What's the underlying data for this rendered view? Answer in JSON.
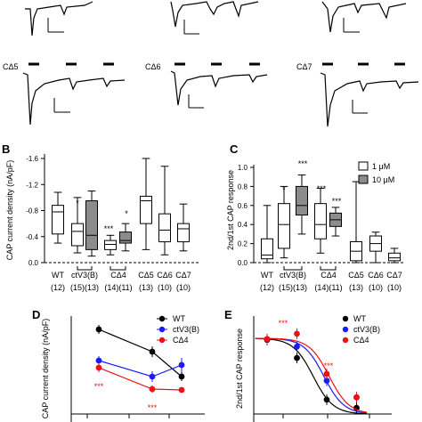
{
  "traces": {
    "labels": [
      "CΔ5",
      "CΔ6",
      "CΔ7"
    ]
  },
  "panelB": {
    "letter": "B",
    "ylabel": "CAP current density (nA/pF)",
    "yticks": [
      "-1.6",
      "-1.2",
      "-0.8",
      "-0.4",
      "0.0"
    ],
    "sig": [
      "*",
      "***",
      "*"
    ],
    "groups": [
      {
        "name": "WT",
        "n": "(12)"
      },
      {
        "name": "ctV3(B)",
        "n": "(15)(13)"
      },
      {
        "name": "CΔ4",
        "n": "(14)(11)"
      },
      {
        "name": "CΔ5",
        "n": "(13)"
      },
      {
        "name": "CΔ6",
        "n": "(10)"
      },
      {
        "name": "CΔ7",
        "n": "(10)"
      }
    ]
  },
  "panelC": {
    "letter": "C",
    "ylabel": "2nd/1st CAP response",
    "yticks": [
      "0.0",
      "0.2",
      "0.4",
      "0.6",
      "0.8",
      "1.0"
    ],
    "legend": [
      "1 μM",
      "10 μM"
    ],
    "sig": [
      "*",
      "***",
      "***",
      "***"
    ],
    "groups": [
      {
        "name": "WT",
        "n": "(12)"
      },
      {
        "name": "ctV3(B)",
        "n": "(15)(13)"
      },
      {
        "name": "CΔ4",
        "n": "(14)(11)"
      },
      {
        "name": "CΔ5",
        "n": "(13)"
      },
      {
        "name": "CΔ6",
        "n": "(10)"
      },
      {
        "name": "CΔ7",
        "n": "(10)"
      }
    ]
  },
  "panelD": {
    "letter": "D",
    "ylabel": "CAP current density (nA/pF)",
    "legend": [
      "WT",
      "ctV3(B)",
      "CΔ4"
    ],
    "sig_blue": "**",
    "sig_red": [
      "***",
      "***"
    ]
  },
  "panelE": {
    "letter": "E",
    "ylabel": "2nd/1st CAP response",
    "legend": [
      "WT",
      "ctV3(B)",
      "CΔ4"
    ],
    "sig_red": [
      "***",
      "***"
    ]
  },
  "colors": {
    "wt": "#000000",
    "ctv3": "#1a1aff",
    "cd4": "#ee1111",
    "grey": "#8c8c8c"
  },
  "chart_data": [
    {
      "type": "box",
      "panel": "B",
      "ylabel": "CAP current density (nA/pF)",
      "ylim": [
        -1.6,
        0.0
      ],
      "boxes": [
        {
          "group": "WT",
          "fill": "white",
          "min": -1.08,
          "q1": -0.88,
          "median": -0.78,
          "q3": -0.44,
          "max": -0.3
        },
        {
          "group": "ctV3(B) 1 μM",
          "fill": "white",
          "min": -1.0,
          "q1": -0.6,
          "median": -0.48,
          "q3": -0.26,
          "max": -0.15
        },
        {
          "group": "ctV3(B) 10 μM",
          "fill": "grey",
          "min": -1.1,
          "q1": -0.95,
          "median": -0.42,
          "q3": -0.2,
          "max": -0.1
        },
        {
          "group": "CΔ4 1 μM",
          "fill": "white",
          "min": -0.42,
          "q1": -0.34,
          "median": -0.28,
          "q3": -0.2,
          "max": -0.12
        },
        {
          "group": "CΔ4 10 μM",
          "fill": "grey",
          "min": -0.6,
          "q1": -0.47,
          "median": -0.34,
          "q3": -0.3,
          "max": -0.18
        },
        {
          "group": "CΔ5",
          "fill": "white",
          "min": -1.6,
          "q1": -1.02,
          "median": -0.95,
          "q3": -0.6,
          "max": -0.2
        },
        {
          "group": "CΔ6",
          "fill": "white",
          "min": -1.48,
          "q1": -0.75,
          "median": -0.5,
          "q3": -0.32,
          "max": -0.12
        },
        {
          "group": "CΔ7",
          "fill": "white",
          "min": -0.9,
          "q1": -0.6,
          "median": -0.52,
          "q3": -0.32,
          "max": -0.18
        }
      ]
    },
    {
      "type": "box",
      "panel": "C",
      "ylabel": "2nd/1st CAP response",
      "ylim": [
        0.0,
        1.0
      ],
      "boxes": [
        {
          "group": "WT",
          "fill": "white",
          "min": 0.0,
          "q1": 0.04,
          "median": 0.08,
          "q3": 0.25,
          "max": 0.6
        },
        {
          "group": "ctV3(B) 1 μM",
          "fill": "white",
          "min": 0.05,
          "q1": 0.15,
          "median": 0.4,
          "q3": 0.62,
          "max": 0.8
        },
        {
          "group": "ctV3(B) 10 μM",
          "fill": "grey",
          "min": 0.3,
          "q1": 0.5,
          "median": 0.6,
          "q3": 0.8,
          "max": 0.92
        },
        {
          "group": "CΔ4 1 μM",
          "fill": "white",
          "min": 0.1,
          "q1": 0.25,
          "median": 0.4,
          "q3": 0.62,
          "max": 0.78
        },
        {
          "group": "CΔ4 10 μM",
          "fill": "grey",
          "min": 0.28,
          "q1": 0.38,
          "median": 0.45,
          "q3": 0.52,
          "max": 0.58
        },
        {
          "group": "CΔ5",
          "fill": "white",
          "min": 0.0,
          "q1": 0.02,
          "median": 0.12,
          "q3": 0.22,
          "max": 0.85
        },
        {
          "group": "CΔ6",
          "fill": "white",
          "min": 0.0,
          "q1": 0.12,
          "median": 0.2,
          "q3": 0.28,
          "max": 0.32
        },
        {
          "group": "CΔ7",
          "fill": "white",
          "min": 0.0,
          "q1": 0.02,
          "median": 0.05,
          "q3": 0.1,
          "max": 0.15
        }
      ]
    },
    {
      "type": "line",
      "panel": "D",
      "ylabel": "CAP current density (nA/pF)",
      "series": [
        {
          "name": "WT",
          "color": "#000000",
          "x": [
            1,
            2,
            3
          ],
          "y": [
            -0.95,
            -0.7,
            -0.42
          ]
        },
        {
          "name": "ctV3(B)",
          "color": "#1a1aff",
          "x": [
            1,
            2,
            3
          ],
          "y": [
            -0.6,
            -0.42,
            -0.55
          ]
        },
        {
          "name": "CΔ4",
          "color": "#ee1111",
          "x": [
            1,
            2,
            3
          ],
          "y": [
            -0.52,
            -0.28,
            -0.27
          ]
        }
      ]
    },
    {
      "type": "scatter",
      "panel": "E",
      "ylabel": "2nd/1st CAP response",
      "series": [
        {
          "name": "WT",
          "color": "#000000",
          "x": [
            0.01,
            0.1,
            1,
            10
          ],
          "y": [
            0.98,
            0.74,
            0.19,
            0.08
          ]
        },
        {
          "name": "ctV3(B)",
          "color": "#1a1aff",
          "x": [
            0.01,
            0.1,
            1,
            10
          ],
          "y": [
            0.99,
            0.89,
            0.44,
            0.22
          ]
        },
        {
          "name": "CΔ4",
          "color": "#ee1111",
          "x": [
            0.01,
            0.1,
            1,
            10
          ],
          "y": [
            0.99,
            1.06,
            0.53,
            0.22
          ]
        }
      ]
    }
  ]
}
